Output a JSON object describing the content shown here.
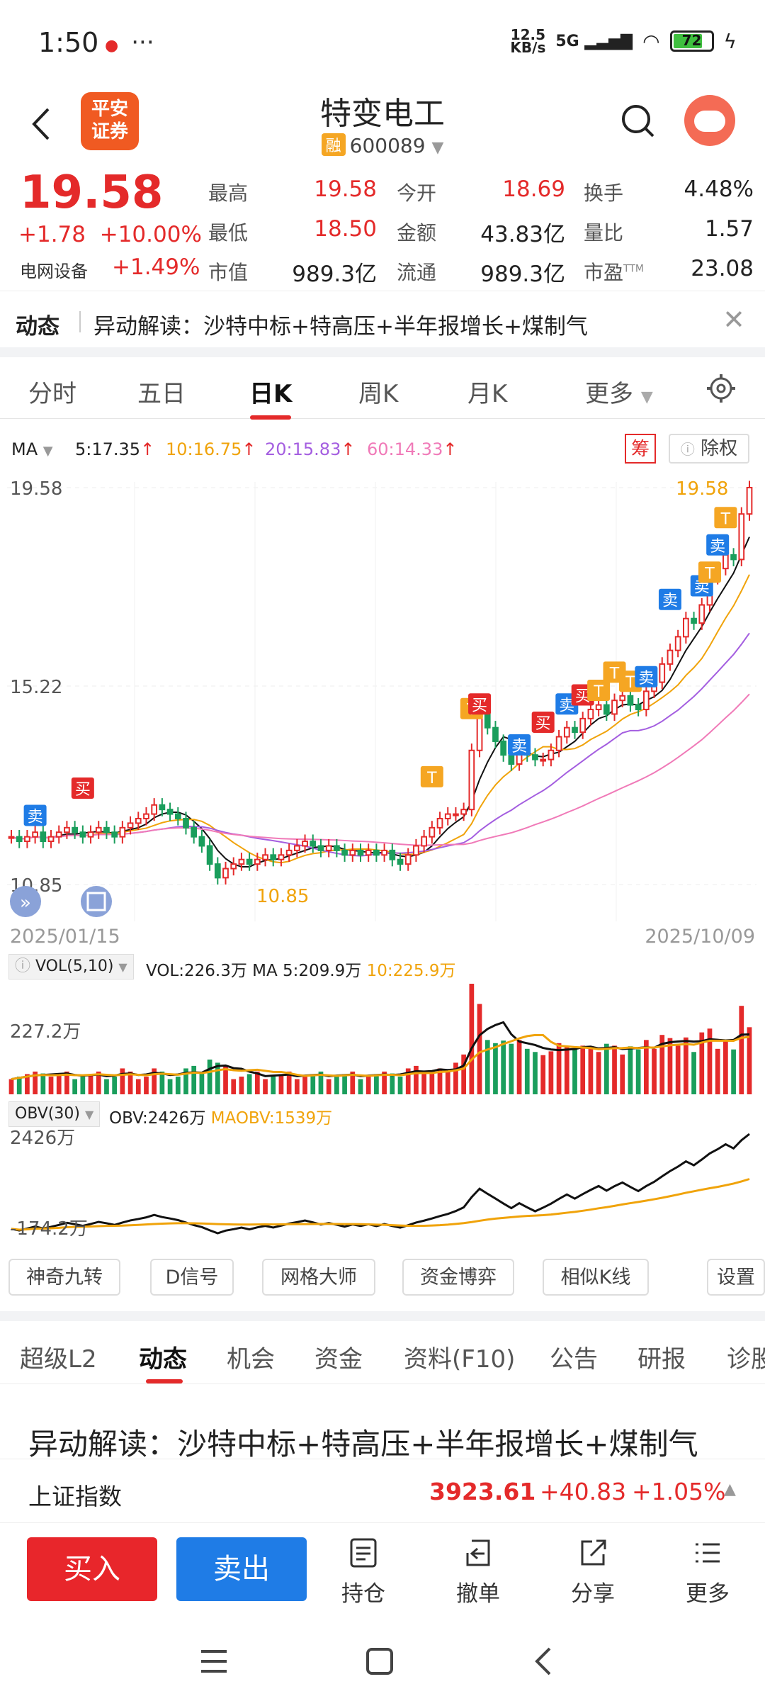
{
  "status_bar": {
    "time": "1:50",
    "dots": "···",
    "net_speed_top": "12.5",
    "net_speed_bottom": "KB/s",
    "signal": "5G",
    "battery": "72"
  },
  "header": {
    "logo_line1": "平安",
    "logo_line2": "证券",
    "title": "特变电工",
    "rong": "融",
    "code": "600089"
  },
  "quote": {
    "price": "19.58",
    "change": "+1.78",
    "change_pct": "+10.00%",
    "industry": "电网设备",
    "industry_pct": "+1.49%",
    "labels": [
      "最高",
      "今开",
      "换手",
      "最低",
      "金额",
      "量比",
      "市值",
      "流通",
      "市盈"
    ],
    "high": "19.58",
    "open": "18.69",
    "turnover": "4.48%",
    "low": "18.50",
    "amount": "43.83亿",
    "vol_ratio": "1.57",
    "mkt_cap": "989.3亿",
    "float_cap": "989.3亿",
    "pe": "23.08",
    "pe_sup": "TTM"
  },
  "news_bar": {
    "label": "动态",
    "text": "异动解读：沙特中标+特高压+半年报增长+煤制气"
  },
  "kline_tabs": [
    "分时",
    "五日",
    "日K",
    "周K",
    "月K",
    "更多"
  ],
  "ma_row": {
    "label": "MA",
    "ma5": "5:17.35",
    "ma10": "10:16.75",
    "ma20": "20:15.83",
    "ma60": "60:14.33",
    "chou": "筹",
    "chuquan": "除权"
  },
  "colors": {
    "up": "#e42a2a",
    "down": "#1a9e5c",
    "ma5": "#111111",
    "ma10": "#f0a30a",
    "ma20": "#a45ee0",
    "ma60": "#f07ab8",
    "buy_btn": "#e8262b",
    "sell_btn": "#1f7ce6"
  },
  "chart_labels": {
    "y_top": "19.58",
    "y_mid": "15.22",
    "y_bot": "10.85",
    "last_price": "19.58",
    "low_mark": "10.85",
    "date_start": "2025/01/15",
    "date_end": "2025/10/09",
    "buy_tag": "买",
    "sell_tag": "卖",
    "t_tag": "T"
  },
  "vol": {
    "label": "VOL(5,10)",
    "vol_txt": "VOL:226.3万",
    "ma5_txt": "MA 5:209.9万",
    "ma10_txt": "10:225.9万",
    "y": "227.2万"
  },
  "obv": {
    "label": "OBV(30)",
    "obv_txt": "OBV:2426万",
    "maobv_txt": "MAOBV:1539万",
    "y_top": "2426万",
    "y_bot": "-174.2万"
  },
  "tools": [
    "神奇九转",
    "D信号",
    "网格大师",
    "资金博弈",
    "相似K线",
    "设置"
  ],
  "bottom_tabs": [
    "超级L2",
    "动态",
    "机会",
    "资金",
    "资料(F10)",
    "公告",
    "研报",
    "诊股"
  ],
  "headline": "异动解读：沙特中标+特高压+半年报增长+煤制气",
  "ticker": {
    "name": "上证指数",
    "value": "3923.61",
    "change": "+40.83",
    "pct": "+1.05%"
  },
  "bottom_bar": {
    "buy": "买入",
    "sell": "卖出",
    "items": [
      "持仓",
      "撤单",
      "分享",
      "更多"
    ]
  },
  "chart_data": {
    "type": "candlestick",
    "x_range": [
      "2025/01/15",
      "2025/10/09"
    ],
    "ylim": [
      10.85,
      19.58
    ],
    "y_ticks": [
      19.58,
      15.22,
      10.85
    ],
    "period_low": 10.85,
    "last_close": 19.58,
    "ma": {
      "MA5": 17.35,
      "MA10": 16.75,
      "MA20": 15.83,
      "MA60": 14.33
    },
    "close_approx": [
      11.9,
      11.8,
      11.9,
      12.0,
      11.8,
      11.9,
      12.0,
      12.1,
      12.0,
      11.9,
      12.0,
      12.1,
      12.0,
      11.9,
      12.1,
      12.2,
      12.3,
      12.4,
      12.6,
      12.5,
      12.4,
      12.3,
      12.1,
      11.9,
      11.7,
      11.3,
      11.0,
      11.2,
      11.3,
      11.4,
      11.3,
      11.4,
      11.5,
      11.4,
      11.5,
      11.6,
      11.7,
      11.8,
      11.7,
      11.6,
      11.7,
      11.6,
      11.5,
      11.6,
      11.5,
      11.6,
      11.5,
      11.6,
      11.4,
      11.3,
      11.5,
      11.7,
      11.9,
      12.1,
      12.3,
      12.4,
      12.4,
      12.5,
      13.8,
      14.7,
      14.3,
      14.0,
      13.7,
      13.5,
      13.9,
      13.7,
      13.6,
      13.6,
      13.8,
      14.1,
      14.3,
      14.2,
      14.5,
      14.7,
      14.8,
      14.6,
      14.9,
      15.0,
      14.8,
      14.7,
      15.1,
      15.3,
      15.7,
      16.0,
      16.3,
      16.7,
      16.6,
      17.0,
      17.6,
      17.8,
      18.1,
      18.0,
      19.0,
      19.58
    ],
    "volume": {
      "series": [
        "VOL",
        "MA5",
        "MA10"
      ],
      "last": {
        "VOL": "226.3万",
        "MA5": "209.9万",
        "MA10": "225.9万"
      },
      "y_tick": "227.2万"
    },
    "obv": {
      "series": [
        "OBV",
        "MAOBV"
      ],
      "last": {
        "OBV": "2426万",
        "MAOBV": "1539万"
      },
      "ylim": [
        "-174.2万",
        "2426万"
      ]
    }
  }
}
